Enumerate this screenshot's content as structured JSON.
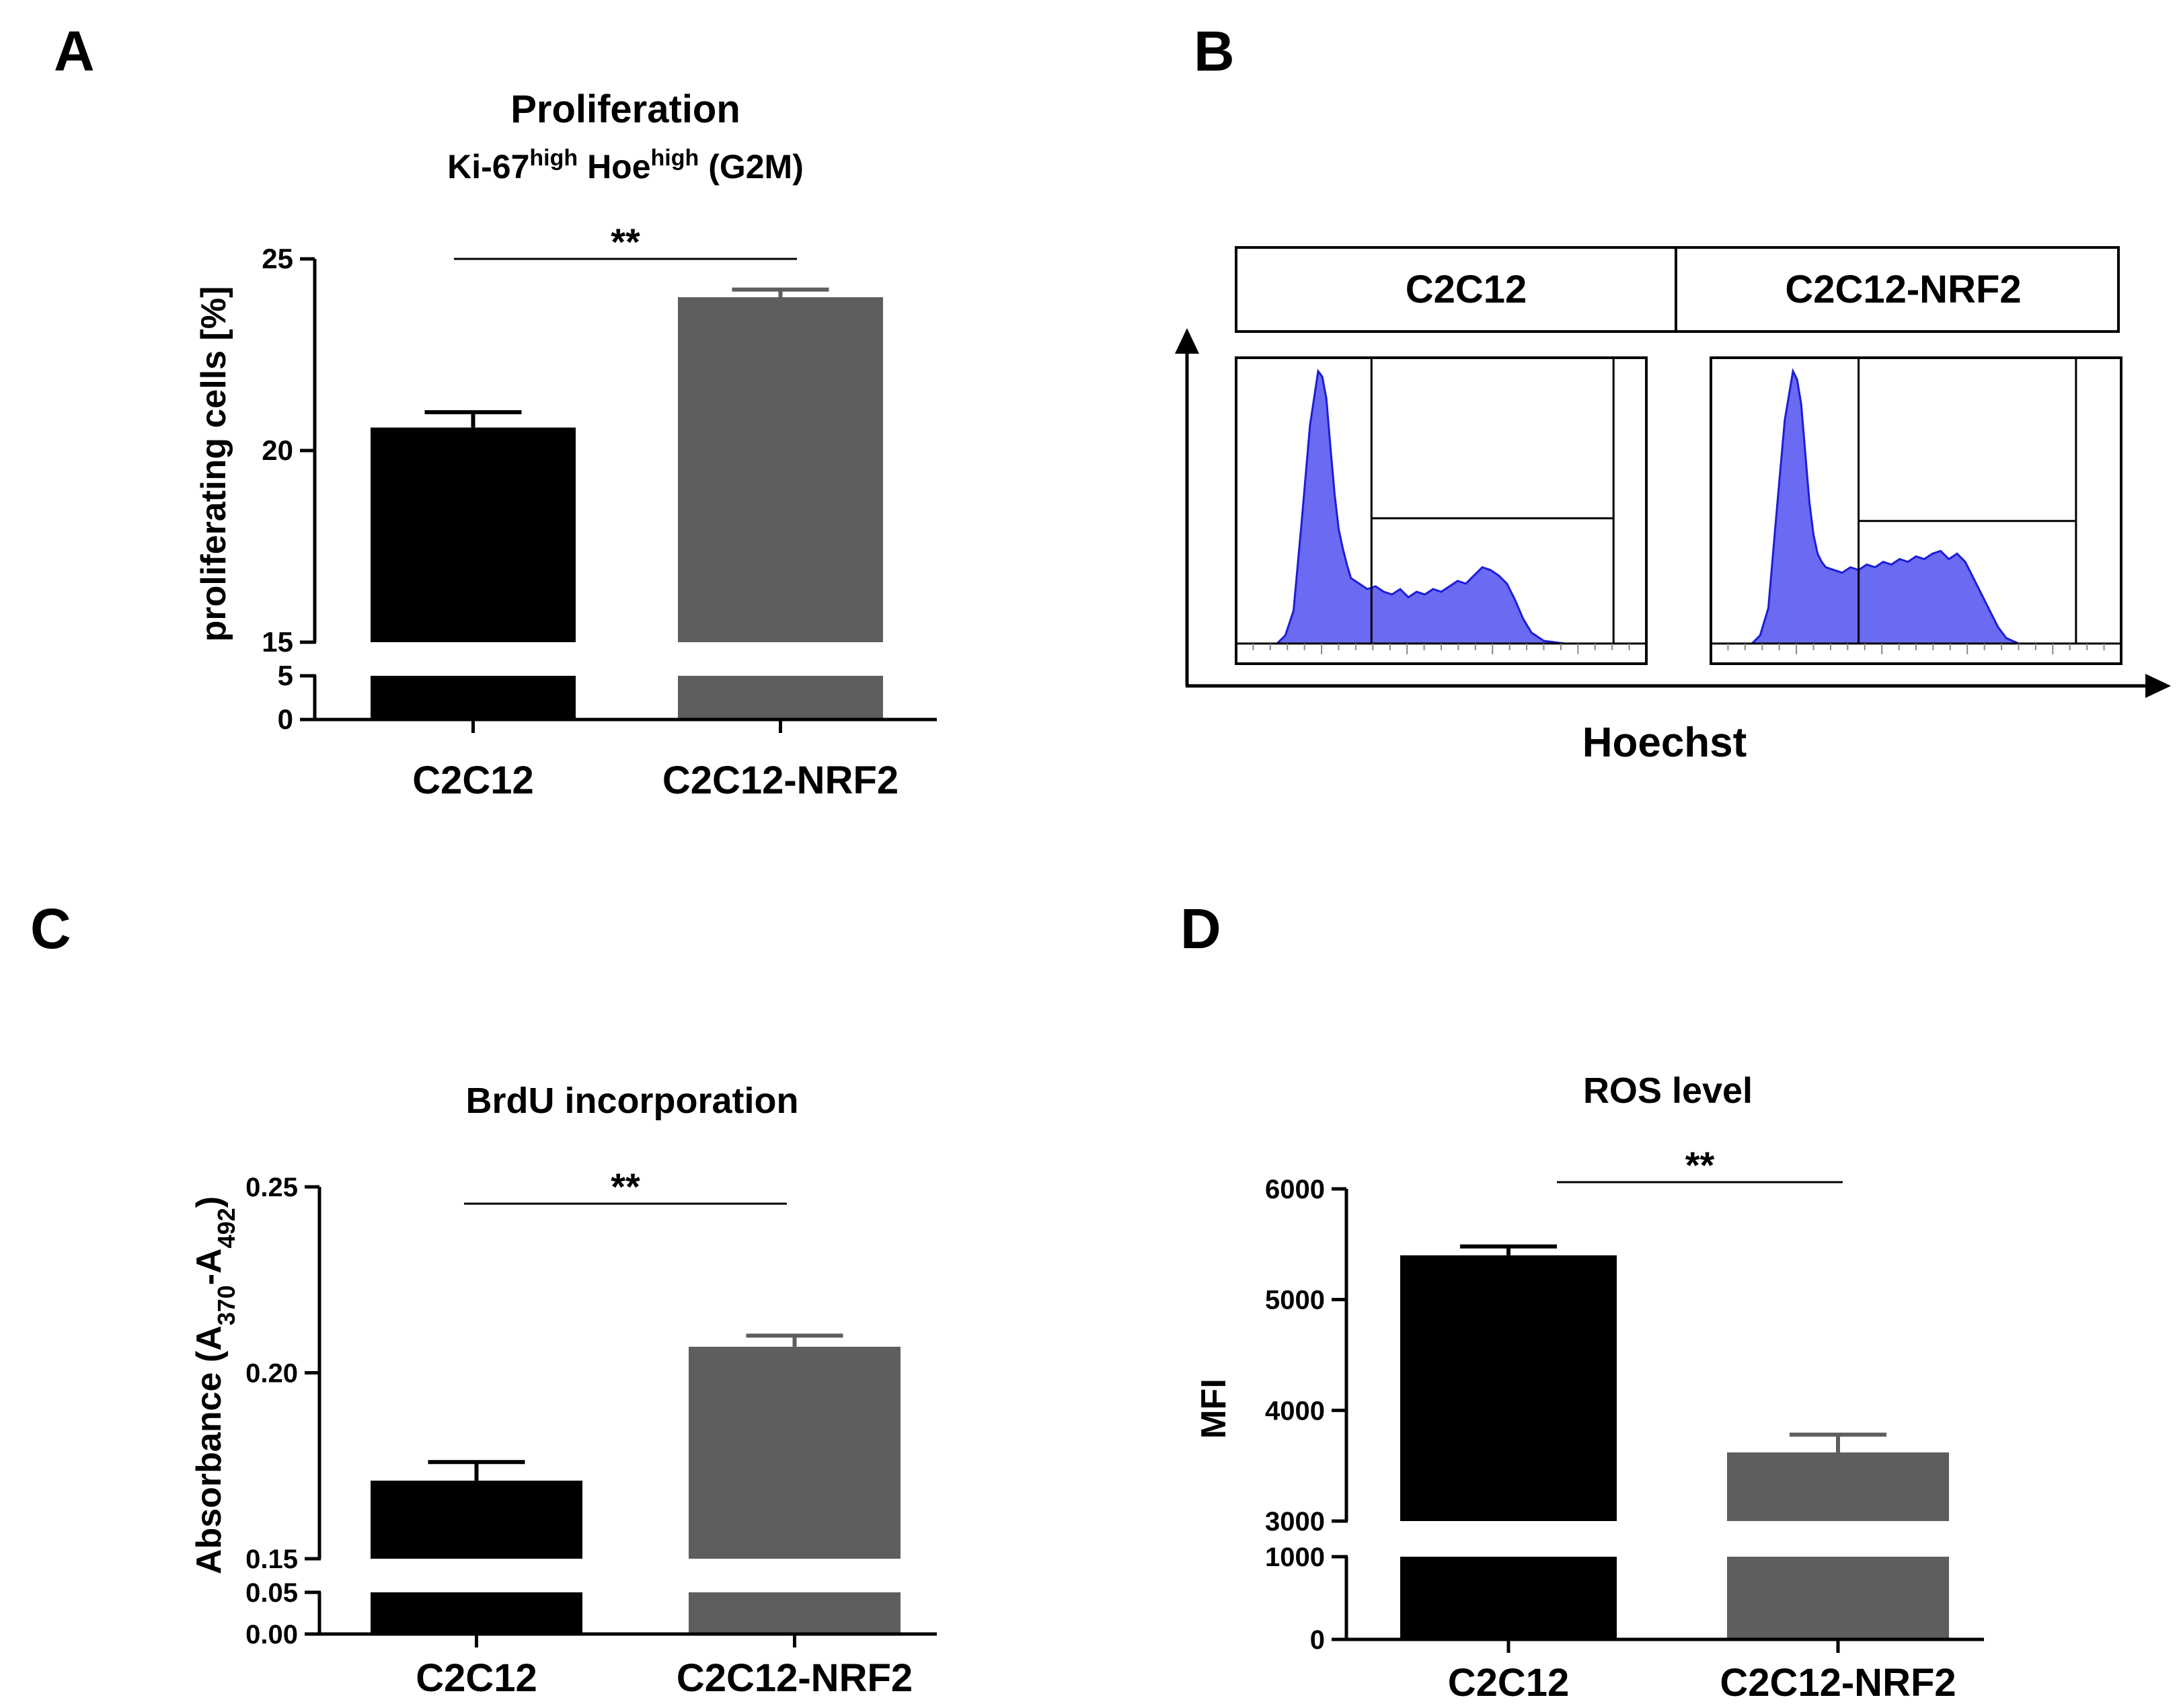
{
  "colors": {
    "c2c12": "#000000",
    "nrf2": "#5e5e5e",
    "axis": "#000000",
    "histogram_fill": "#6a6af2",
    "histogram_stroke": "#1d1dd8"
  },
  "panels": {
    "A": {
      "letter": "A"
    },
    "B": {
      "letter": "B"
    },
    "C": {
      "letter": "C"
    },
    "D": {
      "letter": "D"
    }
  },
  "chart_data": [
    {
      "id": "A",
      "type": "bar",
      "title": "Proliferation",
      "subtitle": {
        "p1": "Ki-67",
        "s1": "high",
        "p2": " Hoe",
        "s2": "high",
        "p3": " (G2M)"
      },
      "ylabel": "proliferating cells [%]",
      "xlabel": "",
      "categories": [
        "C2C12",
        "C2C12-NRF2"
      ],
      "values": [
        20.6,
        24.0
      ],
      "errors": [
        0.4,
        0.2
      ],
      "broken_axis": true,
      "lower_range": [
        0,
        5
      ],
      "lower_ticks": [
        "0",
        "5"
      ],
      "upper_range": [
        15,
        25
      ],
      "upper_ticks": [
        "15",
        "20",
        "25"
      ],
      "significance": "**"
    },
    {
      "id": "B",
      "type": "histogram",
      "headers": [
        "C2C12",
        "C2C12-NRF2"
      ],
      "xlabel": "Hoechst",
      "histograms": [
        {
          "name": "C2C12",
          "x": [
            0.05,
            0.1,
            0.12,
            0.14,
            0.16,
            0.18,
            0.2,
            0.21,
            0.22,
            0.23,
            0.24,
            0.25,
            0.26,
            0.27,
            0.28,
            0.3,
            0.32,
            0.34,
            0.36,
            0.38,
            0.4,
            0.42,
            0.44,
            0.46,
            0.48,
            0.5,
            0.52,
            0.54,
            0.56,
            0.58,
            0.6,
            0.62,
            0.64,
            0.66,
            0.68,
            0.7,
            0.72,
            0.75,
            0.8,
            0.9,
            1.0
          ],
          "y": [
            0.0,
            0.0,
            0.03,
            0.12,
            0.45,
            0.8,
            1.0,
            0.98,
            0.9,
            0.72,
            0.55,
            0.42,
            0.35,
            0.29,
            0.24,
            0.22,
            0.2,
            0.21,
            0.19,
            0.18,
            0.2,
            0.17,
            0.19,
            0.18,
            0.2,
            0.19,
            0.21,
            0.23,
            0.22,
            0.25,
            0.28,
            0.27,
            0.25,
            0.22,
            0.16,
            0.09,
            0.04,
            0.01,
            0.0,
            0.0,
            0.0
          ],
          "gates": {
            "g1_start": 0.33,
            "g1_end": 0.92,
            "hline": 0.46
          }
        },
        {
          "name": "C2C12-NRF2",
          "x": [
            0.05,
            0.1,
            0.12,
            0.14,
            0.16,
            0.18,
            0.2,
            0.21,
            0.22,
            0.23,
            0.24,
            0.25,
            0.26,
            0.27,
            0.28,
            0.3,
            0.32,
            0.34,
            0.36,
            0.38,
            0.4,
            0.42,
            0.44,
            0.46,
            0.48,
            0.5,
            0.52,
            0.54,
            0.56,
            0.58,
            0.6,
            0.62,
            0.64,
            0.66,
            0.68,
            0.7,
            0.72,
            0.75,
            0.8,
            0.9,
            1.0
          ],
          "y": [
            0.0,
            0.0,
            0.03,
            0.13,
            0.48,
            0.82,
            1.0,
            0.97,
            0.88,
            0.7,
            0.52,
            0.4,
            0.33,
            0.3,
            0.28,
            0.27,
            0.26,
            0.28,
            0.27,
            0.29,
            0.28,
            0.3,
            0.29,
            0.31,
            0.3,
            0.32,
            0.31,
            0.33,
            0.34,
            0.31,
            0.33,
            0.3,
            0.24,
            0.18,
            0.12,
            0.06,
            0.02,
            0.0,
            0.0,
            0.0,
            0.0
          ],
          "gates": {
            "g1_start": 0.36,
            "g1_end": 0.89,
            "hline": 0.45
          }
        }
      ]
    },
    {
      "id": "C",
      "type": "bar",
      "title": "BrdU incorporation",
      "ylabel": {
        "main": "Absorbance (A",
        "s1": "370",
        "mid": "-A",
        "s2": "492",
        "end": ")"
      },
      "xlabel": "",
      "categories": [
        "C2C12",
        "C2C12-NRF2"
      ],
      "values": [
        0.171,
        0.207
      ],
      "errors": [
        0.005,
        0.003
      ],
      "broken_axis": true,
      "lower_range": [
        0,
        0.05
      ],
      "lower_ticks": [
        "0.00",
        "0.05"
      ],
      "upper_range": [
        0.15,
        0.25
      ],
      "upper_ticks": [
        "0.15",
        "0.20",
        "0.25"
      ],
      "significance": "**"
    },
    {
      "id": "D",
      "type": "bar",
      "title": "ROS level",
      "ylabel": "MFI",
      "xlabel": "",
      "categories": [
        "C2C12",
        "C2C12-NRF2"
      ],
      "values": [
        5400,
        3620
      ],
      "errors": [
        80,
        160
      ],
      "broken_axis": true,
      "lower_range": [
        0,
        1000
      ],
      "lower_ticks": [
        "0",
        "1000"
      ],
      "upper_range": [
        3000,
        6000
      ],
      "upper_ticks": [
        "3000",
        "4000",
        "5000",
        "6000"
      ],
      "significance": "**"
    }
  ]
}
